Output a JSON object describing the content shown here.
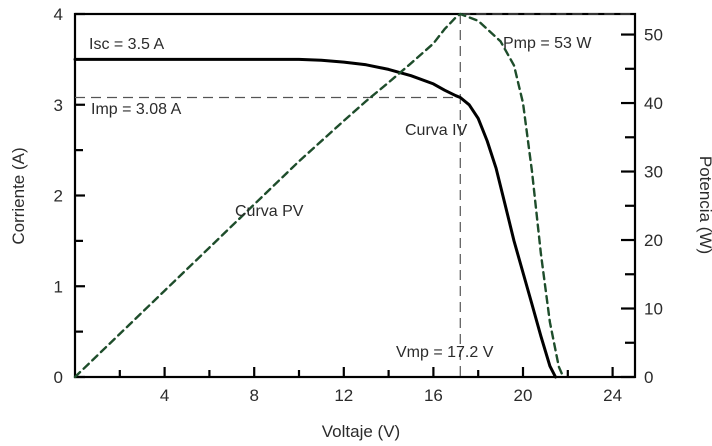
{
  "chart_data": {
    "type": "line",
    "xlabel": "Voltaje (V)",
    "ylabel": "Corriente (A)",
    "y2label": "Potencia (W)",
    "xlim": [
      0,
      25
    ],
    "ylim": [
      0,
      4
    ],
    "y2lim": [
      0,
      53
    ],
    "xticks": [
      4,
      8,
      12,
      16,
      20,
      24
    ],
    "yticks": [
      0,
      1,
      2,
      3,
      4
    ],
    "y2ticks": [
      0,
      10,
      20,
      30,
      40,
      50
    ],
    "grid": false,
    "series": [
      {
        "name": "Curva IV",
        "axis": "left",
        "style": "solid",
        "color": "#000000",
        "x": [
          0,
          2,
          4,
          6,
          8,
          10,
          11,
          12,
          13,
          14,
          15,
          16,
          16.5,
          17,
          17.2,
          17.6,
          18,
          18.4,
          18.8,
          19.2,
          19.6,
          20.0,
          20.4,
          20.8,
          21.2,
          21.45
        ],
        "y": [
          3.5,
          3.5,
          3.5,
          3.5,
          3.5,
          3.5,
          3.49,
          3.47,
          3.44,
          3.39,
          3.32,
          3.23,
          3.16,
          3.1,
          3.08,
          3.0,
          2.85,
          2.6,
          2.3,
          1.9,
          1.5,
          1.15,
          0.8,
          0.45,
          0.12,
          0.0
        ]
      },
      {
        "name": "Curva PV",
        "axis": "right",
        "style": "dashed",
        "color": "#1e4d2b",
        "x": [
          0,
          2,
          4,
          6,
          8,
          10,
          12,
          13,
          14,
          15,
          16,
          16.5,
          17,
          17.2,
          18,
          19,
          19.6,
          20.0,
          20.4,
          20.8,
          21.2,
          21.6,
          21.8
        ],
        "y": [
          0,
          6.3,
          12.6,
          18.9,
          25.2,
          31.5,
          37.4,
          40.3,
          43.0,
          45.8,
          48.7,
          50.8,
          52.5,
          53.0,
          52.0,
          49.0,
          45.5,
          40.0,
          30.0,
          18.0,
          8.0,
          1.5,
          0
        ]
      }
    ],
    "reference_lines": [
      {
        "type": "vertical",
        "x": 17.2,
        "style": "dashed"
      },
      {
        "type": "horizontal",
        "axis": "left",
        "y": 3.08,
        "style": "dashed"
      },
      {
        "type": "horizontal",
        "axis": "right",
        "y": 53,
        "style": "dashed"
      },
      {
        "type": "horizontal",
        "axis": "left",
        "y": 3.5,
        "style": "dashed"
      }
    ],
    "annotations": {
      "isc": "Isc = 3.5 A",
      "imp": "Imp = 3.08 A",
      "pmp": "Pmp = 53 W",
      "vmp": "Vmp = 17.2 V",
      "iv": "Curva IV",
      "pv": "Curva PV"
    }
  }
}
